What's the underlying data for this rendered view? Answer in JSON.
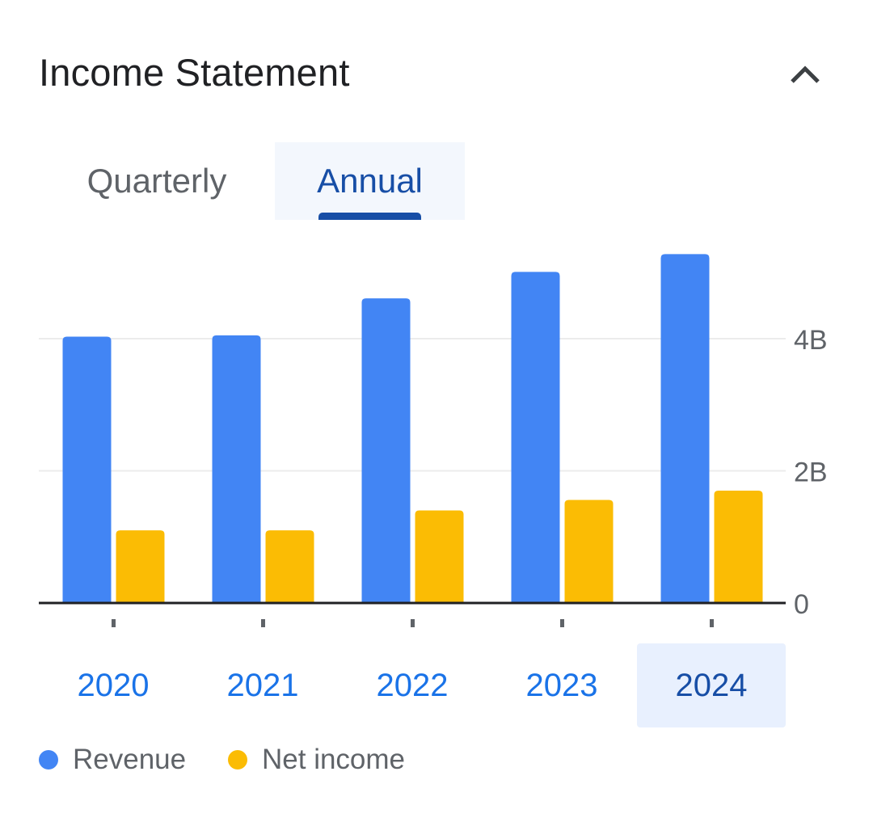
{
  "header": {
    "title": "Income Statement",
    "collapse_icon": "chevron-up-icon"
  },
  "tabs": [
    {
      "label": "Quarterly",
      "selected": false
    },
    {
      "label": "Annual",
      "selected": true
    }
  ],
  "colors": {
    "revenue": "#4285f4",
    "net_income": "#fbbc04",
    "accent": "#174ea6"
  },
  "chart_data": {
    "type": "bar",
    "categories": [
      "2020",
      "2021",
      "2022",
      "2023",
      "2024"
    ],
    "series": [
      {
        "name": "Revenue",
        "values": [
          4.03,
          4.05,
          4.61,
          5.01,
          5.28
        ]
      },
      {
        "name": "Net income",
        "values": [
          1.1,
          1.1,
          1.4,
          1.56,
          1.7
        ]
      }
    ],
    "y_ticks": [
      "0",
      "2B",
      "4B"
    ],
    "y_tick_values": [
      0,
      2,
      4
    ],
    "ylim": [
      0,
      5.5
    ],
    "grid": true,
    "legend_position": "bottom-left",
    "selected_category": "2024"
  },
  "legend": [
    {
      "label": "Revenue"
    },
    {
      "label": "Net income"
    }
  ]
}
